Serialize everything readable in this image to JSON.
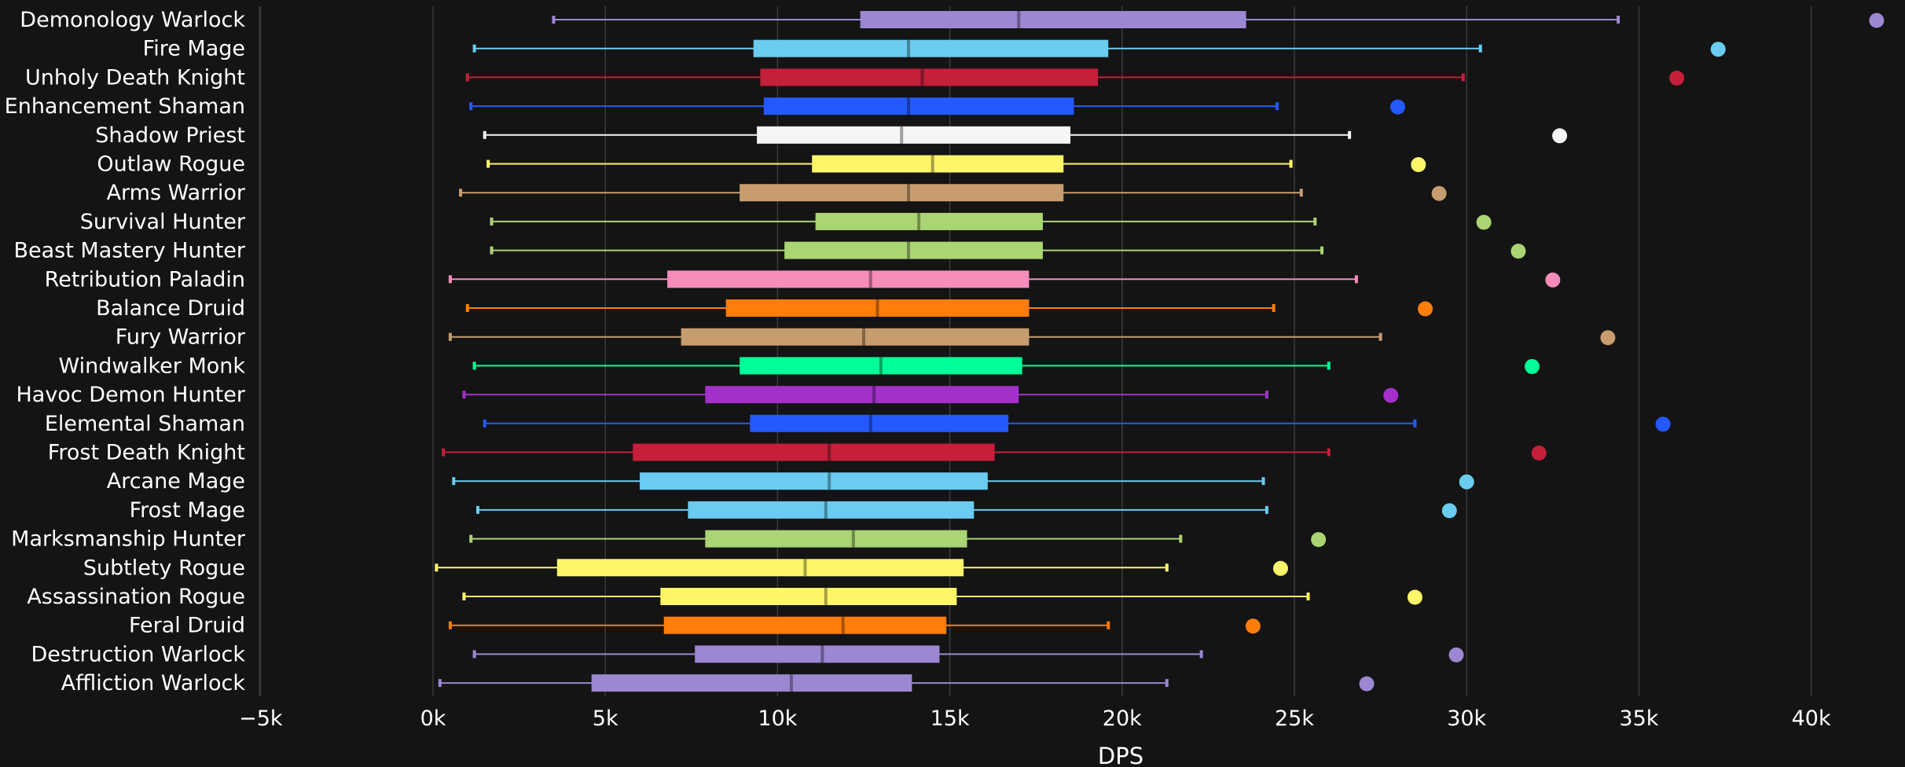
{
  "chart_data": {
    "type": "boxplot",
    "title": "",
    "xlabel": "DPS",
    "ylabel": "",
    "xlim": [
      -5000,
      42500
    ],
    "x_ticks": [
      -5000,
      0,
      5000,
      10000,
      15000,
      20000,
      25000,
      30000,
      35000,
      40000
    ],
    "x_tick_labels": [
      "−5k",
      "0k",
      "5k",
      "10k",
      "15k",
      "20k",
      "25k",
      "30k",
      "35k",
      "40k"
    ],
    "grid": "vertical",
    "legend": "none",
    "series": [
      {
        "category": "Demonology Warlock",
        "color": "#9b87d2",
        "whisker_low": 3500,
        "q1": 12400,
        "median": 17000,
        "q3": 23600,
        "whisker_high": 34400,
        "outlier": 41900
      },
      {
        "category": "Fire Mage",
        "color": "#69ccf0",
        "whisker_low": 1200,
        "q1": 9300,
        "median": 13800,
        "q3": 19600,
        "whisker_high": 30400,
        "outlier": 37300
      },
      {
        "category": "Unholy Death Knight",
        "color": "#c41f3b",
        "whisker_low": 1000,
        "q1": 9500,
        "median": 14200,
        "q3": 19300,
        "whisker_high": 29900,
        "outlier": 36100
      },
      {
        "category": "Enhancement Shaman",
        "color": "#2459ff",
        "whisker_low": 1100,
        "q1": 9600,
        "median": 13800,
        "q3": 18600,
        "whisker_high": 24500,
        "outlier": 28000
      },
      {
        "category": "Shadow Priest",
        "color": "#f5f5f5",
        "whisker_low": 1500,
        "q1": 9400,
        "median": 13600,
        "q3": 18500,
        "whisker_high": 26600,
        "outlier": 32700
      },
      {
        "category": "Outlaw Rogue",
        "color": "#fff569",
        "whisker_low": 1600,
        "q1": 11000,
        "median": 14500,
        "q3": 18300,
        "whisker_high": 24900,
        "outlier": 28600
      },
      {
        "category": "Arms Warrior",
        "color": "#c79c6e",
        "whisker_low": 800,
        "q1": 8900,
        "median": 13800,
        "q3": 18300,
        "whisker_high": 25200,
        "outlier": 29200
      },
      {
        "category": "Survival Hunter",
        "color": "#abd473",
        "whisker_low": 1700,
        "q1": 11100,
        "median": 14100,
        "q3": 17700,
        "whisker_high": 25600,
        "outlier": 30500
      },
      {
        "category": "Beast Mastery Hunter",
        "color": "#abd473",
        "whisker_low": 1700,
        "q1": 10200,
        "median": 13800,
        "q3": 17700,
        "whisker_high": 25800,
        "outlier": 31500
      },
      {
        "category": "Retribution Paladin",
        "color": "#f58cba",
        "whisker_low": 500,
        "q1": 6800,
        "median": 12700,
        "q3": 17300,
        "whisker_high": 26800,
        "outlier": 32500
      },
      {
        "category": "Balance Druid",
        "color": "#ff7d0a",
        "whisker_low": 1000,
        "q1": 8500,
        "median": 12900,
        "q3": 17300,
        "whisker_high": 24400,
        "outlier": 28800
      },
      {
        "category": "Fury Warrior",
        "color": "#c79c6e",
        "whisker_low": 500,
        "q1": 7200,
        "median": 12500,
        "q3": 17300,
        "whisker_high": 27500,
        "outlier": 34100
      },
      {
        "category": "Windwalker Monk",
        "color": "#00ff96",
        "whisker_low": 1200,
        "q1": 8900,
        "median": 13000,
        "q3": 17100,
        "whisker_high": 26000,
        "outlier": 31900
      },
      {
        "category": "Havoc Demon Hunter",
        "color": "#a330c9",
        "whisker_low": 900,
        "q1": 7900,
        "median": 12800,
        "q3": 17000,
        "whisker_high": 24200,
        "outlier": 27800
      },
      {
        "category": "Elemental Shaman",
        "color": "#2459ff",
        "whisker_low": 1500,
        "q1": 9200,
        "median": 12700,
        "q3": 16700,
        "whisker_high": 28500,
        "outlier": 35700
      },
      {
        "category": "Frost Death Knight",
        "color": "#c41f3b",
        "whisker_low": 300,
        "q1": 5800,
        "median": 11500,
        "q3": 16300,
        "whisker_high": 26000,
        "outlier": 32100
      },
      {
        "category": "Arcane Mage",
        "color": "#69ccf0",
        "whisker_low": 600,
        "q1": 6000,
        "median": 11500,
        "q3": 16100,
        "whisker_high": 24100,
        "outlier": 30000
      },
      {
        "category": "Frost Mage",
        "color": "#69ccf0",
        "whisker_low": 1300,
        "q1": 7400,
        "median": 11400,
        "q3": 15700,
        "whisker_high": 24200,
        "outlier": 29500
      },
      {
        "category": "Marksmanship Hunter",
        "color": "#abd473",
        "whisker_low": 1100,
        "q1": 7900,
        "median": 12200,
        "q3": 15500,
        "whisker_high": 21700,
        "outlier": 25700
      },
      {
        "category": "Subtlety Rogue",
        "color": "#fff569",
        "whisker_low": 100,
        "q1": 3600,
        "median": 10800,
        "q3": 15400,
        "whisker_high": 21300,
        "outlier": 24600
      },
      {
        "category": "Assassination Rogue",
        "color": "#fff569",
        "whisker_low": 900,
        "q1": 6600,
        "median": 11400,
        "q3": 15200,
        "whisker_high": 25400,
        "outlier": 28500
      },
      {
        "category": "Feral Druid",
        "color": "#ff7d0a",
        "whisker_low": 500,
        "q1": 6700,
        "median": 11900,
        "q3": 14900,
        "whisker_high": 19600,
        "outlier": 23800
      },
      {
        "category": "Destruction Warlock",
        "color": "#9b87d2",
        "whisker_low": 1200,
        "q1": 7600,
        "median": 11300,
        "q3": 14700,
        "whisker_high": 22300,
        "outlier": 29700
      },
      {
        "category": "Affliction Warlock",
        "color": "#9b87d2",
        "whisker_low": 200,
        "q1": 4600,
        "median": 10400,
        "q3": 13900,
        "whisker_high": 21300,
        "outlier": 27100
      }
    ]
  }
}
